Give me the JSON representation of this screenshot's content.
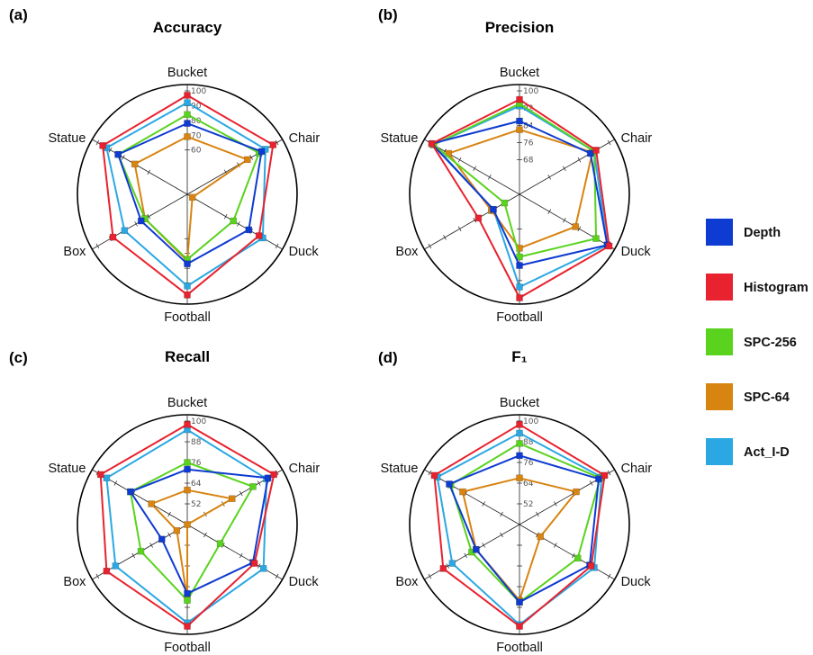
{
  "chart_data": [
    {
      "type": "radar",
      "panel": "(a)",
      "title": "Accuracy",
      "categories": [
        "Bucket",
        "Chair",
        "Duck",
        "Football",
        "Box",
        "Statue"
      ],
      "range": [
        30,
        100
      ],
      "ticks": [
        60,
        70,
        80,
        90,
        100
      ],
      "series": [
        {
          "name": "Depth",
          "values": [
            78,
            88,
            78,
            77,
            66,
            84
          ]
        },
        {
          "name": "Histogram",
          "values": [
            97,
            97,
            86,
            98,
            88,
            96
          ]
        },
        {
          "name": "SPC-256",
          "values": [
            84,
            86,
            66,
            74,
            63,
            84
          ]
        },
        {
          "name": "SPC-64",
          "values": [
            69,
            77,
            34,
            75,
            63,
            71
          ]
        },
        {
          "name": "Act_I-D",
          "values": [
            92,
            91,
            89,
            92,
            79,
            93
          ]
        }
      ]
    },
    {
      "type": "radar",
      "panel": "(b)",
      "title": "Precision",
      "categories": [
        "Bucket",
        "Chair",
        "Duck",
        "Football",
        "Box",
        "Statue"
      ],
      "range": [
        52,
        100
      ],
      "ticks": [
        68,
        76,
        84,
        92,
        100
      ],
      "series": [
        {
          "name": "Depth",
          "values": [
            86,
            90,
            99,
            85,
            66,
            99
          ]
        },
        {
          "name": "Histogram",
          "values": [
            96,
            93,
            100,
            100,
            74,
            99
          ]
        },
        {
          "name": "SPC-256",
          "values": [
            94,
            92,
            93,
            81,
            60,
            98
          ]
        },
        {
          "name": "SPC-64",
          "values": [
            82,
            91,
            82,
            77,
            67,
            90
          ]
        },
        {
          "name": "Act_I-D",
          "values": [
            93,
            92,
            99,
            95,
            66,
            98
          ]
        }
      ]
    },
    {
      "type": "radar",
      "panel": "(c)",
      "title": "Recall",
      "categories": [
        "Bucket",
        "Chair",
        "Duck",
        "Football",
        "Box",
        "Statue"
      ],
      "range": [
        40,
        100
      ],
      "ticks": [
        52,
        64,
        76,
        88,
        100
      ],
      "series": [
        {
          "name": "Depth",
          "values": [
            72,
            94,
            84,
            80,
            57,
            78
          ]
        },
        {
          "name": "Histogram",
          "values": [
            98,
            98,
            85,
            99,
            94,
            98
          ]
        },
        {
          "name": "SPC-256",
          "values": [
            76,
            84,
            62,
            84,
            71,
            78
          ]
        },
        {
          "name": "SPC-64",
          "values": [
            60,
            70,
            40,
            83,
            47,
            64
          ]
        },
        {
          "name": "Act_I-D",
          "values": [
            95,
            93,
            91,
            97,
            88,
            94
          ]
        }
      ]
    },
    {
      "type": "radar",
      "panel": "(d)",
      "title": "F₁",
      "categories": [
        "Bucket",
        "Chair",
        "Duck",
        "Football",
        "Box",
        "Statue"
      ],
      "range": [
        40,
        100
      ],
      "ticks": [
        52,
        64,
        76,
        88,
        100
      ],
      "series": [
        {
          "name": "Depth",
          "values": [
            80,
            93,
            87,
            85,
            69,
            87
          ]
        },
        {
          "name": "Histogram",
          "values": [
            98,
            97,
            88,
            99,
            91,
            97
          ]
        },
        {
          "name": "SPC-256",
          "values": [
            87,
            94,
            79,
            85,
            72,
            86
          ]
        },
        {
          "name": "SPC-64",
          "values": [
            67,
            78,
            54,
            84,
            69,
            78
          ]
        },
        {
          "name": "Act_I-D",
          "values": [
            93,
            95,
            90,
            98,
            85,
            95
          ]
        }
      ]
    }
  ],
  "legend": {
    "placement": "right",
    "items": [
      {
        "name": "Depth",
        "color": "#0e3bd1"
      },
      {
        "name": "Histogram",
        "color": "#e8222e"
      },
      {
        "name": "SPC-256",
        "color": "#5ad31e"
      },
      {
        "name": "SPC-64",
        "color": "#d88410"
      },
      {
        "name": "Act_I-D",
        "color": "#2ba8e3"
      }
    ]
  },
  "draw_order": [
    "Act_I-D",
    "SPC-64",
    "SPC-256",
    "Depth",
    "Histogram"
  ]
}
